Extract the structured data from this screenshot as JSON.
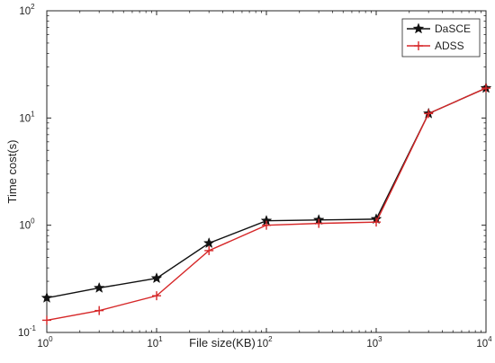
{
  "chart_data": {
    "type": "line",
    "xlabel": "File size(KB)",
    "ylabel": "Time cost(s)",
    "xscale": "log",
    "yscale": "log",
    "xlim": [
      1,
      10000
    ],
    "ylim": [
      0.1,
      100
    ],
    "grid": false,
    "legend_position": "top-right",
    "x_ticks": [
      {
        "base": "10",
        "exp": "0",
        "value": 1
      },
      {
        "base": "10",
        "exp": "1",
        "value": 10
      },
      {
        "base": "10",
        "exp": "2",
        "value": 100
      },
      {
        "base": "10",
        "exp": "3",
        "value": 1000
      },
      {
        "base": "10",
        "exp": "4",
        "value": 10000
      }
    ],
    "y_ticks": [
      {
        "base": "10",
        "exp": "-1",
        "value": 0.1
      },
      {
        "base": "10",
        "exp": "0",
        "value": 1
      },
      {
        "base": "10",
        "exp": "1",
        "value": 10
      },
      {
        "base": "10",
        "exp": "2",
        "value": 100
      }
    ],
    "x": [
      1,
      3,
      10,
      30,
      100,
      300,
      1000,
      3000,
      10000
    ],
    "series": [
      {
        "name": "DaSCE",
        "color": "#111111",
        "marker": "star",
        "values": [
          0.21,
          0.26,
          0.32,
          0.68,
          1.1,
          1.12,
          1.14,
          11.0,
          19.0
        ]
      },
      {
        "name": "ADSS",
        "color": "#d62728",
        "marker": "plus",
        "values": [
          0.13,
          0.16,
          0.22,
          0.58,
          1.0,
          1.04,
          1.07,
          11.0,
          19.0
        ]
      }
    ]
  }
}
